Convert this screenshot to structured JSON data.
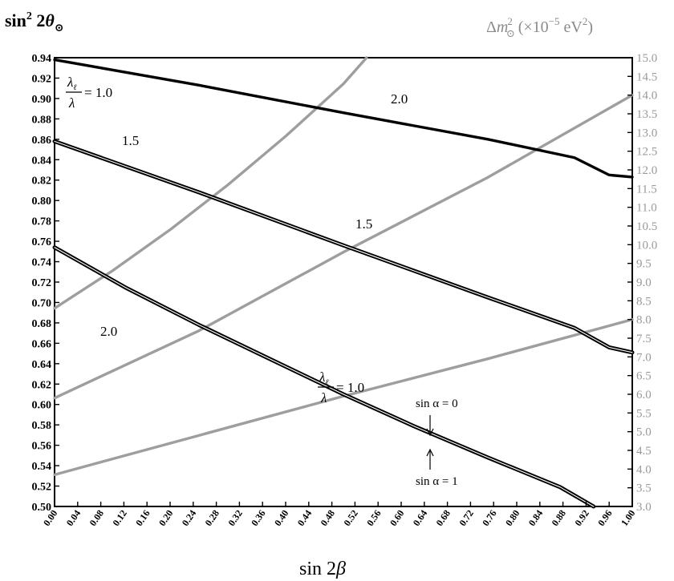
{
  "chart_data": {
    "type": "line",
    "xlabel_parts": {
      "func": "sin 2",
      "sym": "β"
    },
    "ylabel_left_parts": {
      "func": "sin",
      "sup": "2",
      "mid": " 2",
      "sym": "θ",
      "sub": "⊙"
    },
    "ylabel_right_parts": {
      "delta": "Δ",
      "m": "m",
      "sup": "2",
      "sub": "⊙",
      "rest": "(×10",
      "exp": "−5",
      "unit": " eV",
      "unitsup": "2",
      "close": ")"
    },
    "xlim": [
      0.0,
      1.0
    ],
    "ylim_left": [
      0.5,
      0.94
    ],
    "ylim_right": [
      3.0,
      15.0
    ],
    "xticks": [
      "0.00",
      "0.04",
      "0.08",
      "0.12",
      "0.16",
      "0.20",
      "0.24",
      "0.28",
      "0.32",
      "0.36",
      "0.40",
      "0.44",
      "0.48",
      "0.52",
      "0.56",
      "0.60",
      "0.64",
      "0.68",
      "0.72",
      "0.76",
      "0.80",
      "0.84",
      "0.88",
      "0.92",
      "0.96",
      "1.00"
    ],
    "yticks_left": [
      "0.50",
      "0.52",
      "0.54",
      "0.56",
      "0.58",
      "0.60",
      "0.62",
      "0.64",
      "0.66",
      "0.68",
      "0.70",
      "0.72",
      "0.74",
      "0.76",
      "0.78",
      "0.80",
      "0.82",
      "0.84",
      "0.86",
      "0.88",
      "0.90",
      "0.92",
      "0.94"
    ],
    "yticks_right": [
      "3.0",
      "3.5",
      "4.0",
      "4.5",
      "5.0",
      "5.5",
      "6.0",
      "6.5",
      "7.0",
      "7.5",
      "8.0",
      "8.5",
      "9.0",
      "9.5",
      "10.0",
      "10.5",
      "11.0",
      "11.5",
      "12.0",
      "12.5",
      "13.0",
      "13.5",
      "14.0",
      "14.5",
      "15.0"
    ],
    "series_left": [
      {
        "ratio": "1.0",
        "double": false,
        "x": [
          0.0,
          0.25,
          0.5,
          0.75,
          0.9,
          0.96,
          1.0
        ],
        "y": [
          0.938,
          0.913,
          0.886,
          0.86,
          0.842,
          0.825,
          0.823
        ]
      },
      {
        "ratio": "1.5",
        "double": true,
        "x": [
          0.0,
          0.25,
          0.5,
          0.75,
          0.9,
          0.96,
          1.0
        ],
        "y": [
          0.858,
          0.808,
          0.756,
          0.705,
          0.675,
          0.656,
          0.651
        ]
      },
      {
        "ratio": "2.0",
        "double": true,
        "x": [
          0.0,
          0.125,
          0.25,
          0.375,
          0.5,
          0.625,
          0.75,
          0.875,
          0.933
        ],
        "y": [
          0.754,
          0.714,
          0.678,
          0.644,
          0.61,
          0.578,
          0.548,
          0.519,
          0.5
        ]
      }
    ],
    "series_right": [
      {
        "ratio": "1.0",
        "x": [
          0.0,
          0.25,
          0.5,
          0.75,
          1.0
        ],
        "y": [
          3.85,
          4.9,
          5.95,
          6.95,
          8.0
        ]
      },
      {
        "ratio": "1.5",
        "x": [
          0.0,
          0.25,
          0.5,
          0.75,
          1.0
        ],
        "y": [
          5.9,
          7.7,
          9.8,
          11.8,
          14.0
        ]
      },
      {
        "ratio": "2.0",
        "x": [
          0.0,
          0.1,
          0.2,
          0.3,
          0.4,
          0.5,
          0.54
        ],
        "y": [
          8.3,
          9.3,
          10.4,
          11.6,
          12.9,
          14.3,
          15.0
        ]
      }
    ],
    "annotations": {
      "ratio_frac_num": "λ",
      "ratio_frac_num_sub": "ℓ",
      "ratio_frac_den": "λ",
      "ratio_eq_value": "= 1.0",
      "label_1p5_left": "1.5",
      "label_2p0_left": "2.0",
      "label_1p5_right": "1.5",
      "label_2p0_right": "2.0",
      "sin_alpha_0": "sin α = 0",
      "sin_alpha_1": "sin α = 1"
    },
    "colors": {
      "left_series": "#000000",
      "right_series": "#9e9e9e",
      "right_axis_text": "#9a9a9a",
      "inner_line": "#ffffff"
    }
  }
}
